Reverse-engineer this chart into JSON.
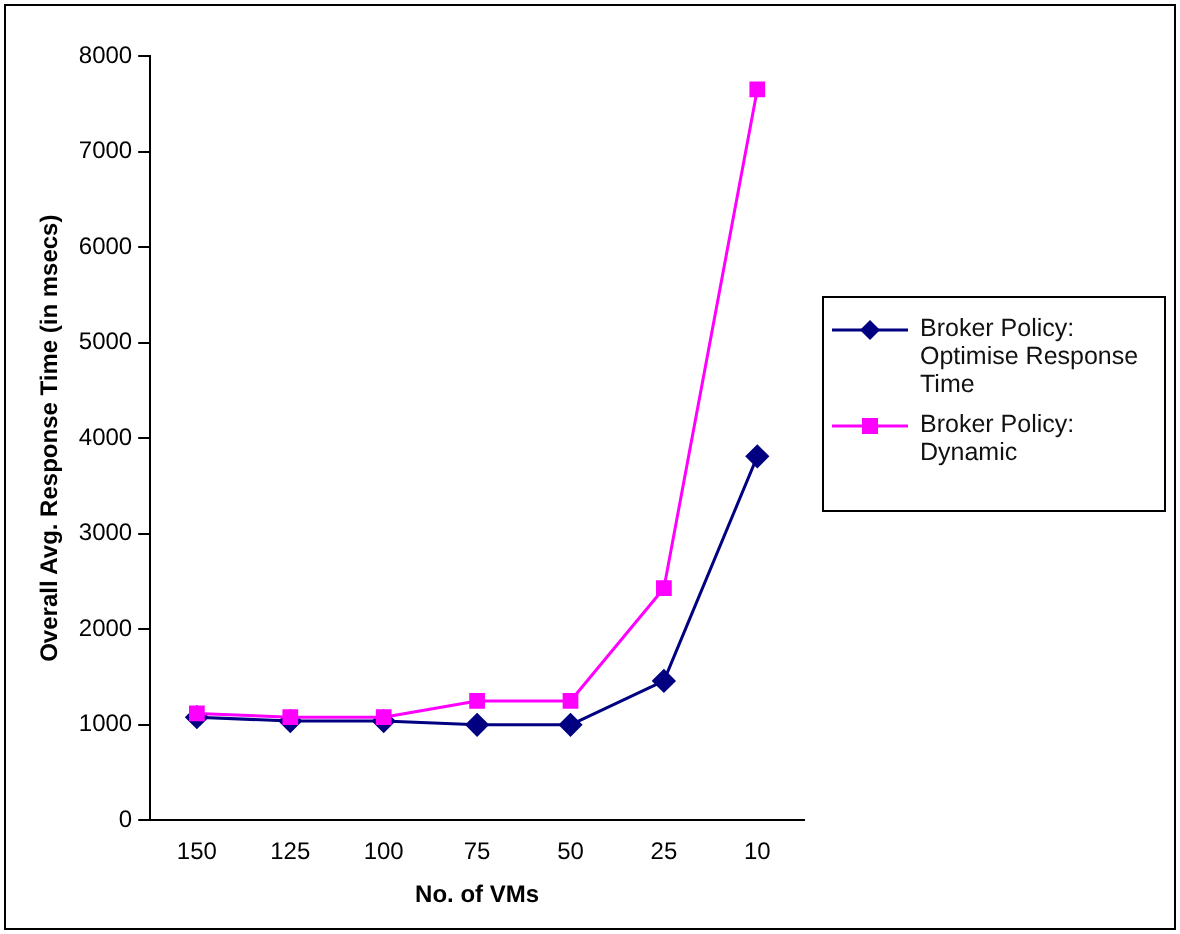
{
  "chart_data": {
    "type": "line",
    "xlabel": "No. of VMs",
    "ylabel": "Overall Avg. Response Time (in msecs)",
    "categories": [
      "150",
      "125",
      "100",
      "75",
      "50",
      "25",
      "10"
    ],
    "series": [
      {
        "name": "Broker Policy: Optimise Response Time",
        "color": "#000080",
        "marker": "diamond",
        "values": [
          1080,
          1040,
          1040,
          1000,
          1000,
          1460,
          3810
        ]
      },
      {
        "name": "Broker Policy: Dynamic",
        "color": "#ff00ff",
        "marker": "square",
        "values": [
          1120,
          1080,
          1080,
          1250,
          1250,
          2430,
          7650
        ]
      }
    ],
    "ylim": [
      0,
      8000
    ],
    "yticks": [
      0,
      1000,
      2000,
      3000,
      4000,
      5000,
      6000,
      7000,
      8000
    ],
    "grid": false,
    "legend": "right",
    "line_style": "solid"
  }
}
